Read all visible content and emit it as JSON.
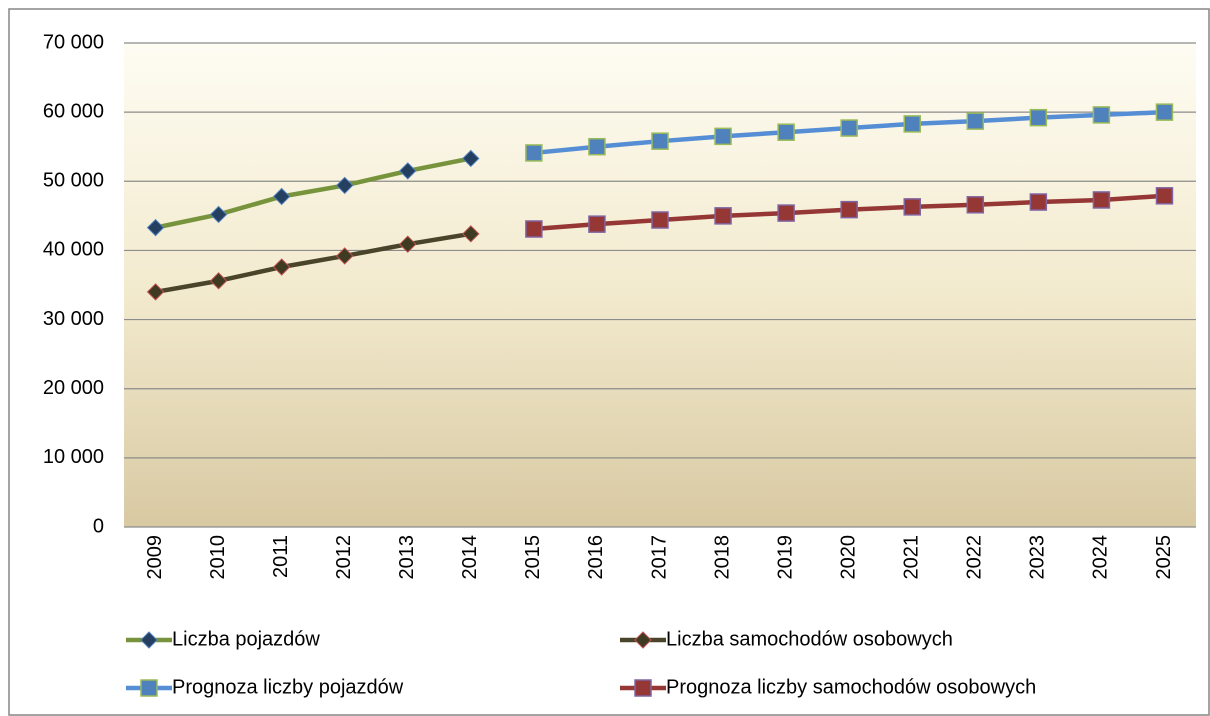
{
  "chart_data": {
    "type": "line",
    "categories": [
      "2009",
      "2010",
      "2011",
      "2012",
      "2013",
      "2014",
      "2015",
      "2016",
      "2017",
      "2018",
      "2019",
      "2020",
      "2021",
      "2022",
      "2023",
      "2024",
      "2025"
    ],
    "series": [
      {
        "name": "Liczba pojazdów",
        "color": "#77933c",
        "marker": "diamond",
        "marker_color": "#243f60",
        "marker_edge": "#4f81bd",
        "values": [
          43300,
          45200,
          47800,
          49400,
          51500,
          53300,
          null,
          null,
          null,
          null,
          null,
          null,
          null,
          null,
          null,
          null,
          null
        ]
      },
      {
        "name": "Liczba samochodów osobowych",
        "color": "#4a452a",
        "marker": "diamond",
        "marker_color": "#3f3a22",
        "marker_edge": "#c0504d",
        "values": [
          34000,
          35600,
          37600,
          39200,
          40900,
          42400,
          null,
          null,
          null,
          null,
          null,
          null,
          null,
          null,
          null,
          null,
          null
        ]
      },
      {
        "name": "Prognoza liczby pojazdów",
        "color": "#558ed5",
        "marker": "square",
        "marker_color": "#4f81bd",
        "marker_edge": "#9bbb59",
        "values": [
          null,
          null,
          null,
          null,
          null,
          null,
          54100,
          55000,
          55800,
          56500,
          57100,
          57700,
          58300,
          58700,
          59200,
          59600,
          60000
        ]
      },
      {
        "name": "Prognoza liczby samochodów osobowych",
        "color": "#953735",
        "marker": "square",
        "marker_color": "#953735",
        "marker_edge": "#8064a2",
        "values": [
          null,
          null,
          null,
          null,
          null,
          null,
          43100,
          43800,
          44400,
          45000,
          45400,
          45900,
          46300,
          46600,
          47000,
          47300,
          47900
        ]
      }
    ],
    "ylim": [
      0,
      70000
    ],
    "yticks": [
      0,
      {
        "value": 10000,
        "label": "10 000"
      },
      {
        "value": 20000,
        "label": "20 000"
      },
      {
        "value": 30000,
        "label": "30 000"
      },
      {
        "value": 40000,
        "label": "40 000"
      },
      {
        "value": 50000,
        "label": "50 000"
      },
      {
        "value": 60000,
        "label": "60 000"
      },
      {
        "value": 70000,
        "label": "70 000"
      }
    ],
    "grid": true,
    "legend": "bottom"
  }
}
